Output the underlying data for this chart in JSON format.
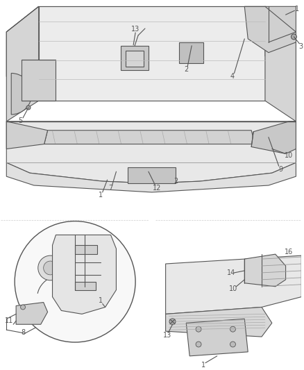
{
  "bg_color": "#ffffff",
  "line_color": "#555555",
  "label_color": "#555555",
  "fig_width": 4.38,
  "fig_height": 5.33,
  "dpi": 100
}
